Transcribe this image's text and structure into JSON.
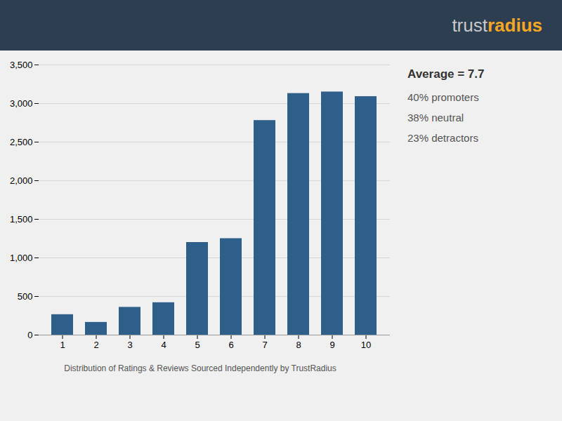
{
  "chart_data": {
    "type": "bar",
    "categories": [
      1,
      2,
      3,
      4,
      5,
      6,
      7,
      8,
      9,
      10
    ],
    "values": [
      265,
      165,
      360,
      420,
      1200,
      1250,
      2780,
      3130,
      3150,
      3090
    ],
    "color": "#2e5f8a",
    "ylim": [
      0,
      3500
    ],
    "yticks": [
      0,
      500,
      1000,
      1500,
      2000,
      2500,
      3000,
      3500
    ],
    "grid": true,
    "caption": "Distribution of Ratings & Reviews Sourced Independently by TrustRadius",
    "annotations": [
      "trust",
      "radius",
      "Average = 7.7",
      "40% promoters",
      "38% neutral",
      "23% detractors"
    ]
  }
}
